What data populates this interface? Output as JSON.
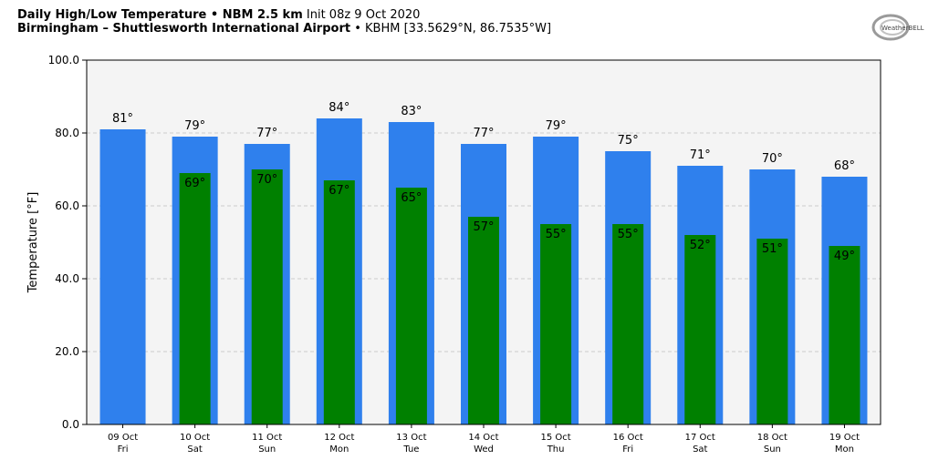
{
  "header": {
    "title_bold": "Daily High/Low Temperature • NBM 2.5 km",
    "title_rest": "Init 08z 9 Oct 2020",
    "location_bold": "Birmingham – Shuttlesworth International Airport",
    "location_rest": "• KBHM [33.5629°N, 86.7535°W]",
    "logo_text": "WeatherBELL"
  },
  "colors": {
    "high_bar": "#2f80ed",
    "low_bar": "#008000",
    "plot_background": "#f4f4f4",
    "grid": "#cccccc"
  },
  "chart_data": {
    "type": "bar",
    "ylabel": "Temperature [°F]",
    "ylim": [
      0,
      100
    ],
    "yticks": [
      "0.0",
      "20.0",
      "40.0",
      "60.0",
      "80.0",
      "100.0"
    ],
    "ytick_values": [
      0,
      20,
      40,
      60,
      80,
      100
    ],
    "grid": true,
    "categories": [
      "09 Oct",
      "10 Oct",
      "11 Oct",
      "12 Oct",
      "13 Oct",
      "14 Oct",
      "15 Oct",
      "16 Oct",
      "17 Oct",
      "18 Oct",
      "19 Oct"
    ],
    "weekdays": [
      "Fri",
      "Sat",
      "Sun",
      "Mon",
      "Tue",
      "Wed",
      "Thu",
      "Fri",
      "Sat",
      "Sun",
      "Mon"
    ],
    "series": [
      {
        "key": "high",
        "values": [
          81,
          79,
          77,
          84,
          83,
          77,
          79,
          75,
          71,
          70,
          68
        ],
        "labels": [
          "81°",
          "79°",
          "77°",
          "84°",
          "83°",
          "77°",
          "79°",
          "75°",
          "71°",
          "70°",
          "68°"
        ]
      },
      {
        "key": "low",
        "values": [
          null,
          69,
          70,
          67,
          65,
          57,
          55,
          55,
          52,
          51,
          49
        ],
        "labels": [
          "",
          "69°",
          "70°",
          "67°",
          "65°",
          "57°",
          "55°",
          "55°",
          "52°",
          "51°",
          "49°"
        ]
      }
    ]
  }
}
